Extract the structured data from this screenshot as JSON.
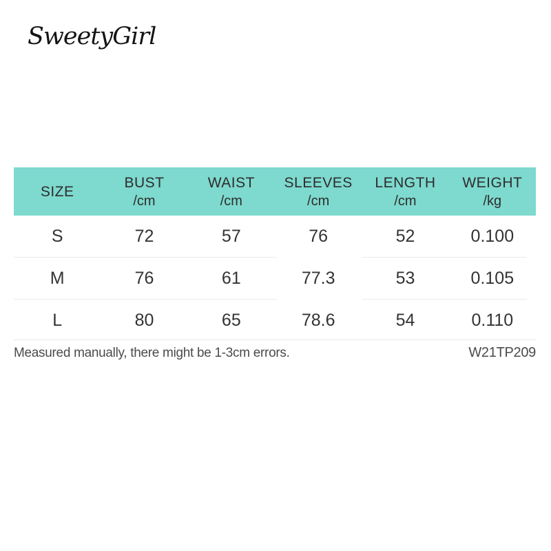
{
  "brand": {
    "logo_text": "SweetyGirl"
  },
  "size_chart": {
    "header_bg": "#7ed9ce",
    "columns": [
      {
        "label": "SIZE",
        "unit": ""
      },
      {
        "label": "BUST",
        "unit": "/cm"
      },
      {
        "label": "WAIST",
        "unit": "/cm"
      },
      {
        "label": "SLEEVES",
        "unit": "/cm"
      },
      {
        "label": "LENGTH",
        "unit": "/cm"
      },
      {
        "label": "WEIGHT",
        "unit": "/kg"
      }
    ],
    "rows": [
      {
        "cells": [
          "S",
          "72",
          "57",
          "76",
          "52",
          "0.100"
        ]
      },
      {
        "cells": [
          "M",
          "76",
          "61",
          "77.3",
          "53",
          "0.105"
        ]
      },
      {
        "cells": [
          "L",
          "80",
          "65",
          "78.6",
          "54",
          "0.110"
        ]
      }
    ]
  },
  "footer": {
    "note": "Measured manually, there might be 1-3cm errors.",
    "product_code": "W21TP209"
  },
  "chart_data": {
    "type": "table",
    "title": "SweetyGirl",
    "columns": [
      "SIZE",
      "BUST /cm",
      "WAIST /cm",
      "SLEEVES /cm",
      "LENGTH /cm",
      "WEIGHT /kg"
    ],
    "rows": [
      [
        "S",
        "72",
        "57",
        "76",
        "52",
        "0.100"
      ],
      [
        "M",
        "76",
        "61",
        "77.3",
        "53",
        "0.105"
      ],
      [
        "L",
        "80",
        "65",
        "78.6",
        "54",
        "0.110"
      ]
    ],
    "note": "Measured manually, there might be 1-3cm errors.",
    "product_code": "W21TP209"
  }
}
